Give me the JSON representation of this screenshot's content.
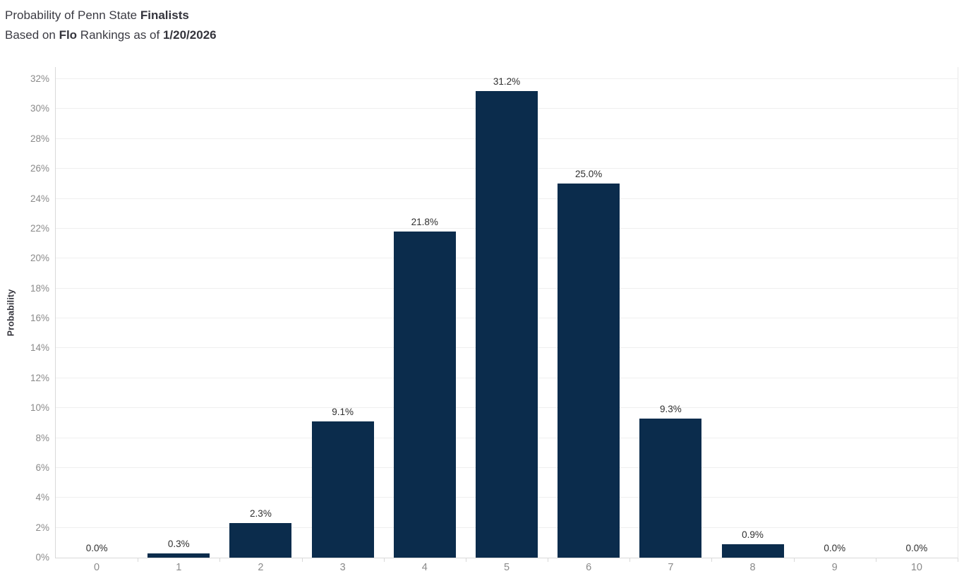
{
  "title": {
    "line1_regular": "Probability of Penn State ",
    "line1_bold": "Finalists",
    "line2_part1": "Based on ",
    "line2_bold1": "Flo",
    "line2_part2": " Rankings as of ",
    "line2_bold2": "1/20/2026"
  },
  "chart_data": {
    "type": "bar",
    "categories": [
      "0",
      "1",
      "2",
      "3",
      "4",
      "5",
      "6",
      "7",
      "8",
      "9",
      "10"
    ],
    "values": [
      0.0,
      0.3,
      2.3,
      9.1,
      21.8,
      31.2,
      25.0,
      9.3,
      0.9,
      0.0,
      0.0
    ],
    "value_labels": [
      "0.0%",
      "0.3%",
      "2.3%",
      "9.1%",
      "21.8%",
      "31.2%",
      "25.0%",
      "9.3%",
      "0.9%",
      "0.0%",
      "0.0%"
    ],
    "title": "Probability of Penn State Finalists",
    "subtitle": "Based on Flo Rankings as of 1/20/2026",
    "xlabel": "",
    "ylabel": "Probability",
    "ylim": [
      0,
      32
    ],
    "ytick_step": 2,
    "ytick_labels": [
      "0%",
      "2%",
      "4%",
      "6%",
      "8%",
      "10%",
      "12%",
      "14%",
      "16%",
      "18%",
      "20%",
      "22%",
      "24%",
      "26%",
      "28%",
      "30%",
      "32%"
    ],
    "grid": "horizontal",
    "legend_position": "none",
    "bar_color": "#0b2c4c"
  },
  "colors": {
    "bar": "#0b2c4c",
    "title_text": "#3b3b43",
    "tick_text": "#8a8a8a",
    "label_text": "#2f2f2f",
    "gridline": "#efefef",
    "axis_line": "#d9d9d9",
    "background": "#ffffff"
  }
}
